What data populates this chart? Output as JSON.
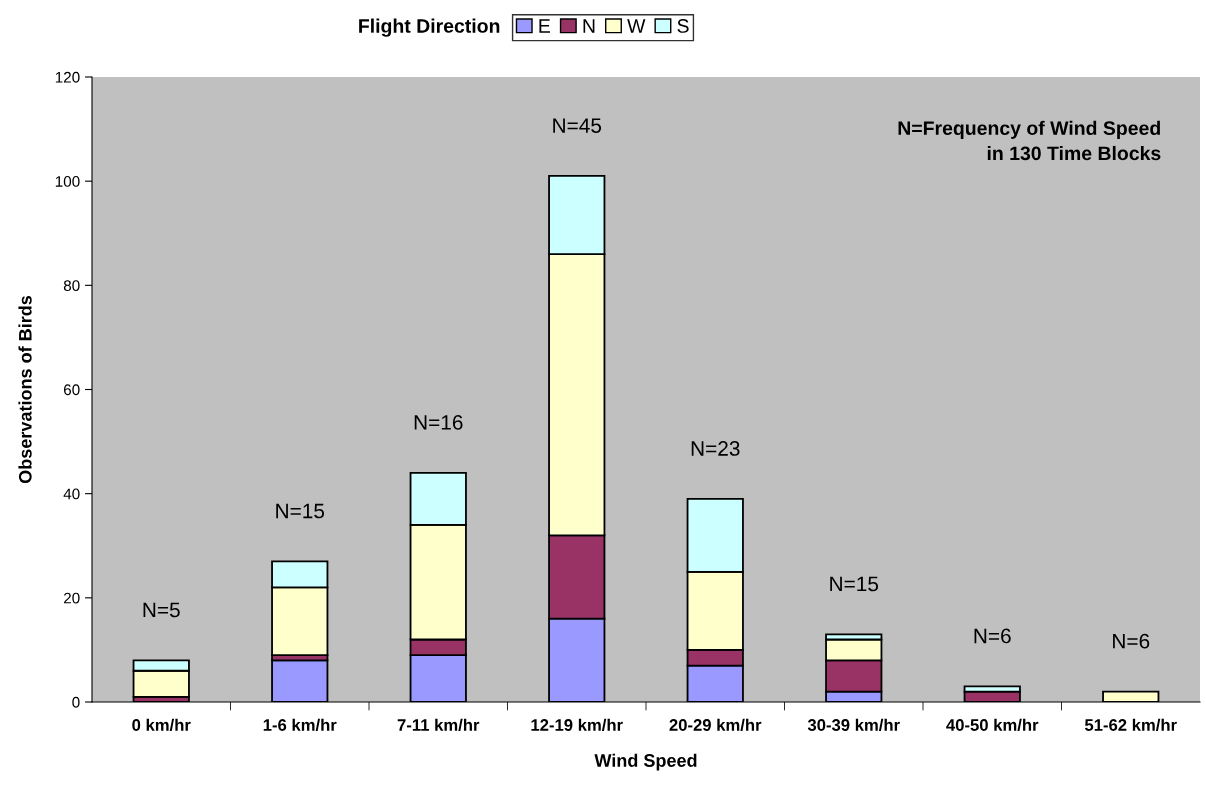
{
  "chart_data": {
    "type": "bar",
    "stacked": true,
    "xlabel": "Wind Speed",
    "ylabel": "Observations of Birds",
    "legend_title": "Flight Direction",
    "legend": "top",
    "categories": [
      "0 km/hr",
      "1-6 km/hr",
      "7-11 km/hr",
      "12-19 km/hr",
      "20-29 km/hr",
      "30-39 km/hr",
      "40-50 km/hr",
      "51-62 km/hr"
    ],
    "series": [
      {
        "name": "E",
        "color": "#9999ff",
        "values": [
          0,
          8,
          9,
          16,
          7,
          2,
          0,
          0
        ]
      },
      {
        "name": "N",
        "color": "#993366",
        "values": [
          1,
          1,
          3,
          16,
          3,
          6,
          2,
          0
        ]
      },
      {
        "name": "W",
        "color": "#ffffcc",
        "values": [
          5,
          13,
          22,
          54,
          15,
          4,
          0,
          2
        ]
      },
      {
        "name": "S",
        "color": "#ccffff",
        "values": [
          2,
          5,
          10,
          15,
          14,
          1,
          1,
          0
        ]
      }
    ],
    "ylim": [
      0,
      120
    ],
    "yticks": [
      0,
      20,
      40,
      60,
      80,
      100,
      120
    ],
    "grid": false,
    "annotations": [
      "N=5",
      "N=15",
      "N=16",
      "N=45",
      "N=23",
      "N=15",
      "N=6",
      "N=6",
      "N=Frequency of Wind Speed\nin 130 Time Blocks"
    ]
  }
}
